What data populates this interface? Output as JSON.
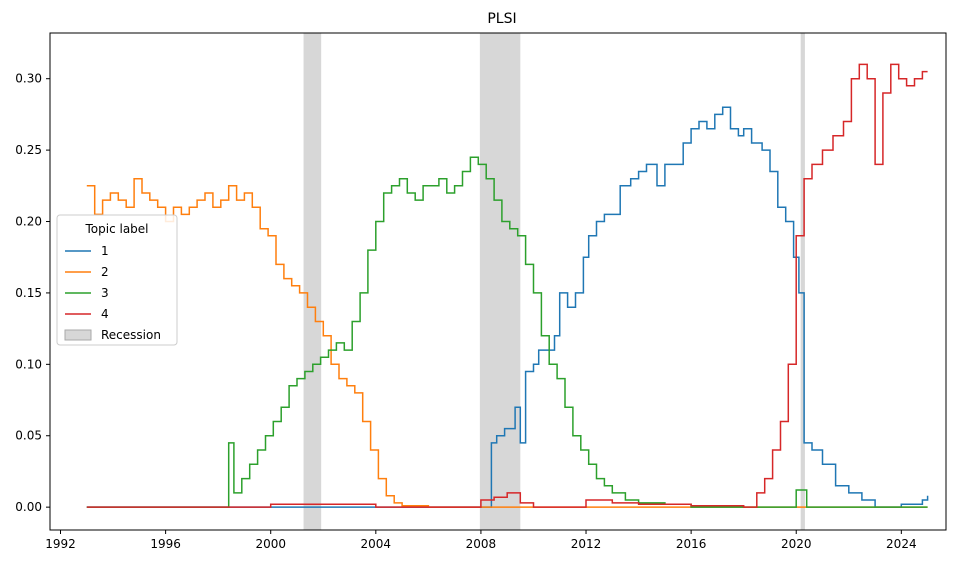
{
  "chart_data": {
    "type": "line",
    "step": true,
    "title": "PLSI",
    "xlabel": "",
    "ylabel": "",
    "xlim": [
      1991.6,
      2025.7
    ],
    "ylim": [
      -0.016,
      0.332
    ],
    "xticks": [
      1992,
      1996,
      2000,
      2004,
      2008,
      2012,
      2016,
      2020,
      2024
    ],
    "xtick_labels": [
      "1992",
      "1996",
      "2000",
      "2004",
      "2008",
      "2012",
      "2016",
      "2020",
      "2024"
    ],
    "yticks": [
      0.0,
      0.05,
      0.1,
      0.15,
      0.2,
      0.25,
      0.3
    ],
    "ytick_labels": [
      "0.00",
      "0.05",
      "0.10",
      "0.15",
      "0.20",
      "0.25",
      "0.30"
    ],
    "recessions": [
      [
        2001.25,
        2001.92
      ],
      [
        2007.96,
        2009.5
      ],
      [
        2020.17,
        2020.33
      ]
    ],
    "legend": {
      "title": "Topic label",
      "placement": "center-left",
      "entries": [
        "1",
        "2",
        "3",
        "4",
        "Recession"
      ]
    },
    "series": [
      {
        "name": "1",
        "color": "#1f77b4",
        "x": [
          1993.0,
          2008.4,
          2008.6,
          2008.9,
          2009.3,
          2009.5,
          2009.7,
          2010.0,
          2010.2,
          2010.5,
          2010.8,
          2011.0,
          2011.3,
          2011.6,
          2011.9,
          2012.1,
          2012.4,
          2012.7,
          2013.0,
          2013.3,
          2013.7,
          2014.0,
          2014.3,
          2014.7,
          2015.0,
          2015.3,
          2015.7,
          2016.0,
          2016.3,
          2016.6,
          2016.9,
          2017.2,
          2017.5,
          2017.8,
          2018.0,
          2018.3,
          2018.7,
          2019.0,
          2019.3,
          2019.6,
          2019.9,
          2020.1,
          2020.3,
          2020.6,
          2021.0,
          2021.5,
          2022.0,
          2022.5,
          2023.0,
          2024.0,
          2024.8,
          2025.0
        ],
        "values": [
          0.0,
          0.045,
          0.05,
          0.055,
          0.07,
          0.045,
          0.095,
          0.1,
          0.11,
          0.11,
          0.12,
          0.15,
          0.14,
          0.15,
          0.175,
          0.19,
          0.2,
          0.205,
          0.205,
          0.225,
          0.23,
          0.235,
          0.24,
          0.225,
          0.24,
          0.24,
          0.255,
          0.265,
          0.27,
          0.265,
          0.275,
          0.28,
          0.265,
          0.26,
          0.265,
          0.255,
          0.25,
          0.235,
          0.21,
          0.2,
          0.175,
          0.15,
          0.045,
          0.04,
          0.03,
          0.015,
          0.01,
          0.005,
          0.0,
          0.002,
          0.005,
          0.008
        ]
      },
      {
        "name": "2",
        "color": "#ff7f0e",
        "x": [
          1993.0,
          1993.3,
          1993.6,
          1993.9,
          1994.2,
          1994.5,
          1994.8,
          1995.1,
          1995.4,
          1995.7,
          1996.0,
          1996.3,
          1996.6,
          1996.9,
          1997.2,
          1997.5,
          1997.8,
          1998.1,
          1998.4,
          1998.7,
          1999.0,
          1999.3,
          1999.6,
          1999.9,
          2000.2,
          2000.5,
          2000.8,
          2001.1,
          2001.4,
          2001.7,
          2002.0,
          2002.3,
          2002.6,
          2002.9,
          2003.2,
          2003.5,
          2003.8,
          2004.1,
          2004.4,
          2004.7,
          2005.0,
          2006.0,
          2008.0,
          2010.0,
          2012.0,
          2016.0,
          2020.0,
          2025.0
        ],
        "values": [
          0.225,
          0.205,
          0.215,
          0.22,
          0.215,
          0.21,
          0.23,
          0.22,
          0.215,
          0.21,
          0.2,
          0.21,
          0.205,
          0.21,
          0.215,
          0.22,
          0.21,
          0.215,
          0.225,
          0.215,
          0.22,
          0.21,
          0.195,
          0.19,
          0.17,
          0.16,
          0.155,
          0.15,
          0.14,
          0.13,
          0.12,
          0.1,
          0.09,
          0.085,
          0.08,
          0.06,
          0.04,
          0.02,
          0.008,
          0.003,
          0.001,
          0.0,
          0.0,
          0.0,
          0.0,
          0.0,
          0.0,
          0.0
        ]
      },
      {
        "name": "3",
        "color": "#2ca02c",
        "x": [
          1993.0,
          1998.4,
          1998.6,
          1998.9,
          1999.2,
          1999.5,
          1999.8,
          2000.1,
          2000.4,
          2000.7,
          2001.0,
          2001.3,
          2001.6,
          2001.9,
          2002.2,
          2002.5,
          2002.8,
          2003.1,
          2003.4,
          2003.7,
          2004.0,
          2004.3,
          2004.6,
          2004.9,
          2005.2,
          2005.5,
          2005.8,
          2006.1,
          2006.4,
          2006.7,
          2007.0,
          2007.3,
          2007.6,
          2007.9,
          2008.2,
          2008.5,
          2008.8,
          2009.1,
          2009.4,
          2009.7,
          2010.0,
          2010.3,
          2010.6,
          2010.9,
          2011.2,
          2011.5,
          2011.8,
          2012.1,
          2012.4,
          2012.7,
          2013.0,
          2013.5,
          2014.0,
          2015.0,
          2016.0,
          2018.0,
          2020.0,
          2020.4,
          2025.0
        ],
        "values": [
          0.0,
          0.045,
          0.01,
          0.02,
          0.03,
          0.04,
          0.05,
          0.06,
          0.07,
          0.085,
          0.09,
          0.095,
          0.1,
          0.105,
          0.11,
          0.115,
          0.11,
          0.13,
          0.15,
          0.18,
          0.2,
          0.22,
          0.225,
          0.23,
          0.22,
          0.215,
          0.225,
          0.225,
          0.23,
          0.22,
          0.225,
          0.235,
          0.245,
          0.24,
          0.23,
          0.215,
          0.2,
          0.195,
          0.19,
          0.17,
          0.15,
          0.12,
          0.1,
          0.09,
          0.07,
          0.05,
          0.04,
          0.03,
          0.02,
          0.015,
          0.01,
          0.005,
          0.003,
          0.002,
          0.0,
          0.0,
          0.012,
          0.0,
          0.0
        ]
      },
      {
        "name": "4",
        "color": "#d62728",
        "x": [
          1993.0,
          2000.0,
          2004.0,
          2007.7,
          2008.0,
          2008.5,
          2009.0,
          2009.5,
          2010.0,
          2012.0,
          2013.0,
          2014.0,
          2016.0,
          2018.0,
          2018.5,
          2018.8,
          2019.1,
          2019.4,
          2019.7,
          2020.0,
          2020.3,
          2020.6,
          2021.0,
          2021.4,
          2021.8,
          2022.1,
          2022.4,
          2022.7,
          2023.0,
          2023.3,
          2023.6,
          2023.9,
          2024.2,
          2024.5,
          2024.8,
          2025.0
        ],
        "values": [
          0.0,
          0.002,
          0.0,
          0.0,
          0.005,
          0.007,
          0.01,
          0.003,
          0.0,
          0.005,
          0.003,
          0.002,
          0.001,
          0.0,
          0.01,
          0.02,
          0.04,
          0.06,
          0.1,
          0.19,
          0.23,
          0.24,
          0.25,
          0.26,
          0.27,
          0.3,
          0.31,
          0.3,
          0.24,
          0.29,
          0.31,
          0.3,
          0.295,
          0.3,
          0.305,
          0.305
        ]
      }
    ]
  }
}
